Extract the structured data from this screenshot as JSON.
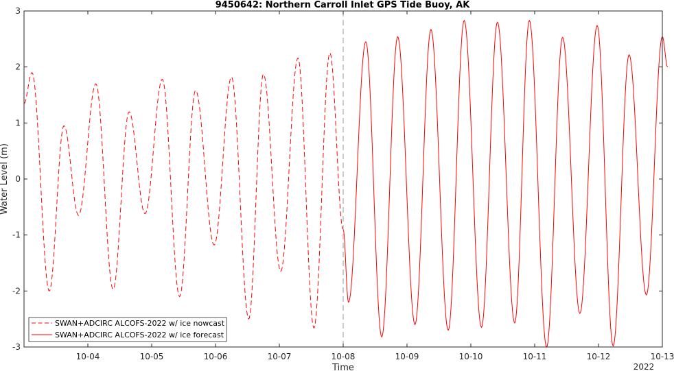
{
  "chart_data": {
    "type": "line",
    "title": "9450642: Northern Carroll Inlet GPS Tide Buoy, AK",
    "xlabel": "Time",
    "ylabel": "Water Level (m)",
    "year_label": "2022",
    "xlim": [
      "2022-10-03",
      "2022-10-13"
    ],
    "ylim": [
      -3,
      3
    ],
    "x_ticks": [
      "10-04",
      "10-05",
      "10-06",
      "10-07",
      "10-08",
      "10-09",
      "10-10",
      "10-11",
      "10-12",
      "10-13"
    ],
    "y_ticks": [
      -3,
      -2,
      -1,
      0,
      1,
      2,
      3
    ],
    "grid": false,
    "legend_position": "bottom-left",
    "line_color": "#ff0000",
    "forecast_start_marker": "2022-10-08",
    "series": [
      {
        "name": "SWAN+ADCIRC ALCOFS-2022 w/ ice nowcast",
        "style": "dashed",
        "extrema": [
          [
            "2022-10-03 00:00",
            1.35
          ],
          [
            "2022-10-03 03:00",
            1.9
          ],
          [
            "2022-10-03 09:30",
            -2.0
          ],
          [
            "2022-10-03 15:00",
            0.95
          ],
          [
            "2022-10-03 20:30",
            -0.65
          ],
          [
            "2022-10-04 03:00",
            1.7
          ],
          [
            "2022-10-04 09:30",
            -1.97
          ],
          [
            "2022-10-04 15:30",
            1.2
          ],
          [
            "2022-10-04 21:30",
            -0.62
          ],
          [
            "2022-10-05 04:00",
            1.78
          ],
          [
            "2022-10-05 10:30",
            -2.1
          ],
          [
            "2022-10-05 16:30",
            1.58
          ],
          [
            "2022-10-05 23:30",
            -1.18
          ],
          [
            "2022-10-06 06:00",
            1.82
          ],
          [
            "2022-10-06 12:30",
            -2.5
          ],
          [
            "2022-10-06 18:00",
            1.87
          ],
          [
            "2022-10-07 00:30",
            -1.65
          ],
          [
            "2022-10-07 07:00",
            2.16
          ],
          [
            "2022-10-07 13:00",
            -2.66
          ],
          [
            "2022-10-07 19:00",
            2.25
          ],
          [
            "2022-10-08 00:00",
            -0.9
          ]
        ]
      },
      {
        "name": "SWAN+ADCIRC ALCOFS-2022 w/ ice forecast",
        "style": "solid",
        "extrema": [
          [
            "2022-10-08 00:00",
            -0.9
          ],
          [
            "2022-10-08 02:00",
            -2.2
          ],
          [
            "2022-10-08 08:30",
            2.45
          ],
          [
            "2022-10-08 14:30",
            -2.82
          ],
          [
            "2022-10-08 20:30",
            2.54
          ],
          [
            "2022-10-09 03:00",
            -2.6
          ],
          [
            "2022-10-09 09:00",
            2.67
          ],
          [
            "2022-10-09 15:30",
            -2.7
          ],
          [
            "2022-10-09 21:30",
            2.83
          ],
          [
            "2022-10-10 04:00",
            -2.65
          ],
          [
            "2022-10-10 10:00",
            2.8
          ],
          [
            "2022-10-10 16:30",
            -2.57
          ],
          [
            "2022-10-10 22:00",
            2.83
          ],
          [
            "2022-10-11 04:30",
            -3.0
          ],
          [
            "2022-10-11 10:30",
            2.53
          ],
          [
            "2022-10-11 17:00",
            -2.4
          ],
          [
            "2022-10-11 23:30",
            2.74
          ],
          [
            "2022-10-12 05:30",
            -2.98
          ],
          [
            "2022-10-12 11:30",
            2.22
          ],
          [
            "2022-10-12 18:00",
            -2.07
          ],
          [
            "2022-10-13 00:00",
            2.54
          ],
          [
            "2022-10-13 02:00",
            2.0
          ]
        ]
      }
    ]
  }
}
